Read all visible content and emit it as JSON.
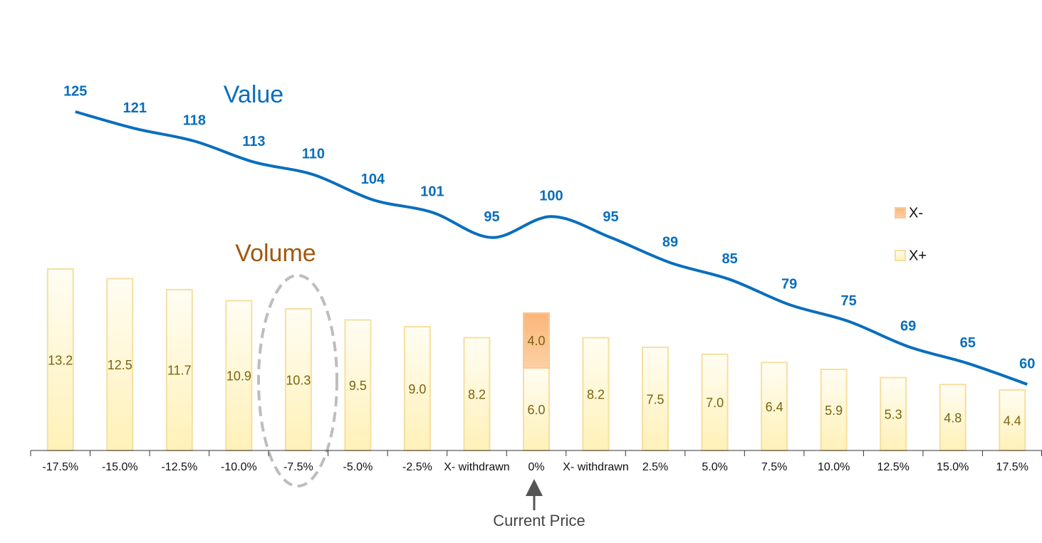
{
  "chart_data": {
    "type": "combo",
    "categories": [
      "-17.5%",
      "-15.0%",
      "-12.5%",
      "-10.0%",
      "-7.5%",
      "-5.0%",
      "-2.5%",
      "X- withdrawn",
      "0%",
      "X- withdrawn",
      "2.5%",
      "5.0%",
      "7.5%",
      "10.0%",
      "12.5%",
      "15.0%",
      "17.5%"
    ],
    "series": [
      {
        "name": "X-",
        "type": "bar",
        "color": "#f9be8a",
        "values": [
          null,
          null,
          null,
          null,
          null,
          null,
          null,
          null,
          4.0,
          null,
          null,
          null,
          null,
          null,
          null,
          null,
          null
        ],
        "value_labels": [
          null,
          null,
          null,
          null,
          null,
          null,
          null,
          null,
          "4.0",
          null,
          null,
          null,
          null,
          null,
          null,
          null,
          null
        ]
      },
      {
        "name": "X+",
        "type": "bar",
        "color": "#fff2c0",
        "values": [
          13.2,
          12.5,
          11.7,
          10.9,
          10.3,
          9.5,
          9.0,
          8.2,
          6.0,
          8.2,
          7.5,
          7.0,
          6.4,
          5.9,
          5.3,
          4.8,
          4.4
        ],
        "value_labels": [
          "13.2",
          "12.5",
          "11.7",
          "10.9",
          "10.3",
          "9.5",
          "9.0",
          "8.2",
          "6.0",
          "8.2",
          "7.5",
          "7.0",
          "6.4",
          "5.9",
          "5.3",
          "4.8",
          "4.4"
        ]
      },
      {
        "name": "Value",
        "type": "line",
        "color": "#0a6ebd",
        "values": [
          125,
          121,
          118,
          113,
          110,
          104,
          101,
          95,
          100,
          95,
          89,
          85,
          79,
          75,
          69,
          65,
          60
        ]
      }
    ],
    "annotations": [
      "Volume",
      "Current Price"
    ],
    "legend": "right"
  }
}
